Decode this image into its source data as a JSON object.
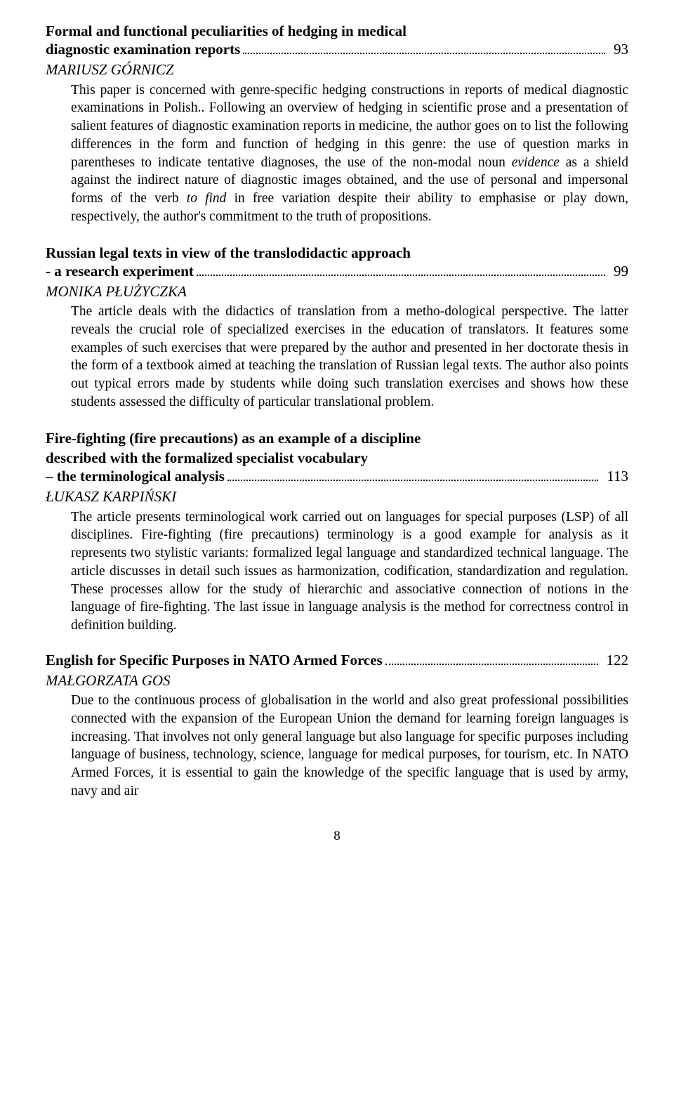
{
  "entries": [
    {
      "title_lines": [
        "Formal and functional peculiarities of hedging in medical"
      ],
      "title_last": "diagnostic examination reports",
      "page": "93",
      "author": "MARIUSZ GÓRNICZ",
      "abstract_html": "This paper is concerned with genre-specific hedging constructions in reports of medical diagnostic examinations in Polish.. Following an overview of hedging in scientific prose and a presentation of salient features of diagnostic examination reports in medicine, the author goes on to list the following differences in the form and function of hedging in this genre: the use of question marks in parentheses to indicate tentative diagnoses, the use of the non-modal noun <span class=\"ital\">evidence</span> as a shield against the indirect nature of diagnostic images obtained, and the use of personal and impersonal forms of the verb <span class=\"ital\">to find</span> in free variation despite their ability to emphasise or play down, respectively, the author's commitment to the truth of propositions."
    },
    {
      "title_lines": [
        "Russian legal texts in view of the translodidactic approach"
      ],
      "title_last": " - a research experiment",
      "page": "99",
      "author": "MONIKA PŁUŻYCZKA",
      "abstract_html": "The article deals with the didactics of translation from a metho-dological perspective. The latter reveals the crucial role of specialized exercises in the education of translators. It features some examples of such exercises that were prepared by the author and presented in her doctorate thesis in the form of a textbook aimed at teaching the translation of Russian legal texts. The author also points out typical errors made by students while doing such translation exercises and shows how these students  assessed the difficulty of particular translational problem."
    },
    {
      "title_lines": [
        "Fire-fighting (fire precautions) as an example of a discipline",
        "described with the formalized specialist vocabulary"
      ],
      "title_last": "– the terminological analysis",
      "page": "113",
      "author": "ŁUKASZ KARPIŃSKI",
      "abstract_html": "The article presents terminological work carried out on languages for special purposes (LSP) of all disciplines. Fire-fighting (fire precautions) terminology is a good example for analysis as it represents two stylistic variants: formalized legal language and standardized technical language. The article discusses in detail such issues as harmonization, codification, standardization and regulation. These processes allow for the study of hierarchic and associative connection of notions in the language of fire-fighting. The last issue in language analysis is the method for correctness control in definition building."
    },
    {
      "title_lines": [],
      "title_last": "English for Specific Purposes in NATO Armed Forces",
      "page": "122",
      "author": "MAŁGORZATA GOS",
      "abstract_html": "Due to the continuous process of globalisation in the world and also great professional possibilities connected with the expansion of the European Union the demand for learning foreign languages is increasing. That involves not only general language but also language for specific purposes including language of business, technology, science, language for medical purposes, for tourism, etc. In NATO Armed Forces, it is essential to gain the knowledge of the specific language that is used by army, navy and air"
    }
  ],
  "footer_page": "8"
}
